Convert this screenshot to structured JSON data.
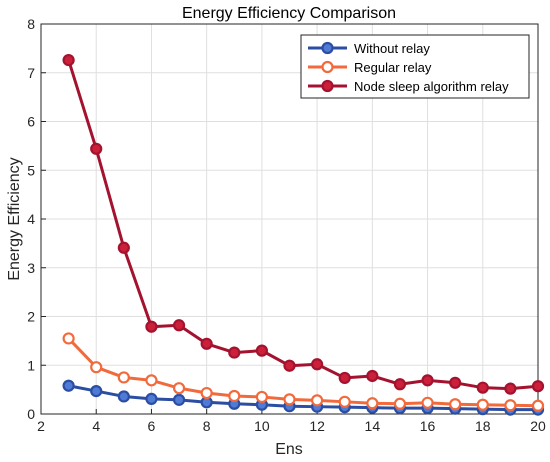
{
  "chart_data": {
    "type": "line",
    "title": "Energy Efficiency Comparison",
    "xlabel": "Ens",
    "ylabel": "Energy Efficiency",
    "xlim": [
      2,
      20
    ],
    "ylim": [
      0,
      8
    ],
    "xticks": [
      2,
      4,
      6,
      8,
      10,
      12,
      14,
      16,
      18,
      20
    ],
    "yticks": [
      0,
      1,
      2,
      3,
      4,
      5,
      6,
      7,
      8
    ],
    "grid": true,
    "legend_position": "top-right",
    "x": [
      3,
      4,
      5,
      6,
      7,
      8,
      9,
      10,
      11,
      12,
      13,
      14,
      15,
      16,
      17,
      18,
      19,
      20
    ],
    "series": [
      {
        "name": "Without relay",
        "color": "#2b4ea2",
        "marker_fill": "#4f7ad6",
        "values": [
          0.58,
          0.47,
          0.36,
          0.31,
          0.29,
          0.24,
          0.21,
          0.19,
          0.16,
          0.15,
          0.14,
          0.13,
          0.12,
          0.12,
          0.11,
          0.1,
          0.09,
          0.09
        ]
      },
      {
        "name": "Regular relay",
        "color": "#f26a3c",
        "marker_fill": "#ffffff",
        "values": [
          1.55,
          0.96,
          0.75,
          0.69,
          0.53,
          0.43,
          0.37,
          0.35,
          0.3,
          0.28,
          0.25,
          0.22,
          0.21,
          0.23,
          0.2,
          0.19,
          0.18,
          0.17
        ]
      },
      {
        "name": "Node sleep algorithm relay",
        "color": "#a3132f",
        "marker_fill": "#cc1f3a",
        "values": [
          7.26,
          5.44,
          3.41,
          1.79,
          1.82,
          1.44,
          1.26,
          1.3,
          0.99,
          1.02,
          0.74,
          0.78,
          0.61,
          0.69,
          0.64,
          0.54,
          0.52,
          0.57
        ]
      }
    ]
  }
}
